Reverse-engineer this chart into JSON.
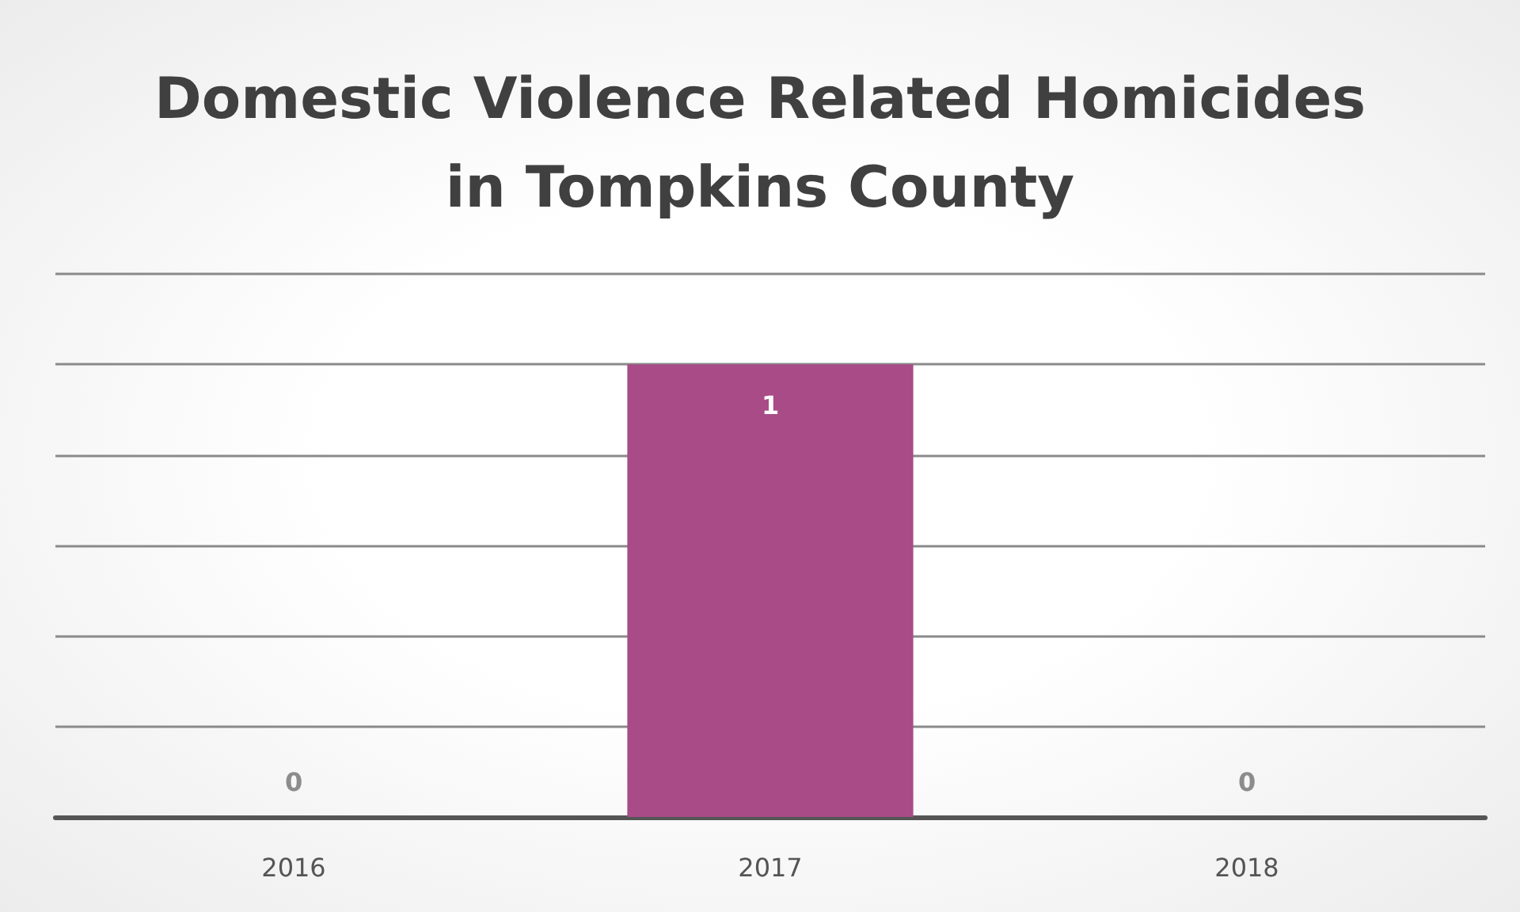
{
  "chart_data": {
    "type": "bar",
    "title": "Domestic Violence Related Homicides\nin Tompkins County",
    "categories": [
      "2016",
      "2017",
      "2018"
    ],
    "values": [
      0,
      1,
      0
    ],
    "color": "#a84b87",
    "data_labels": true,
    "ylim": [
      0,
      1.2
    ],
    "yticks": [
      {
        "value": 0,
        "label": null
      },
      {
        "value": 0.2,
        "label": null
      },
      {
        "value": 0.4,
        "label": null
      },
      {
        "value": 0.6,
        "label": null
      },
      {
        "value": 0.8,
        "label": null
      },
      {
        "value": 1,
        "label": null
      },
      {
        "value": 1.2,
        "label": null
      }
    ],
    "grid": "y",
    "tick_labels": "x"
  }
}
